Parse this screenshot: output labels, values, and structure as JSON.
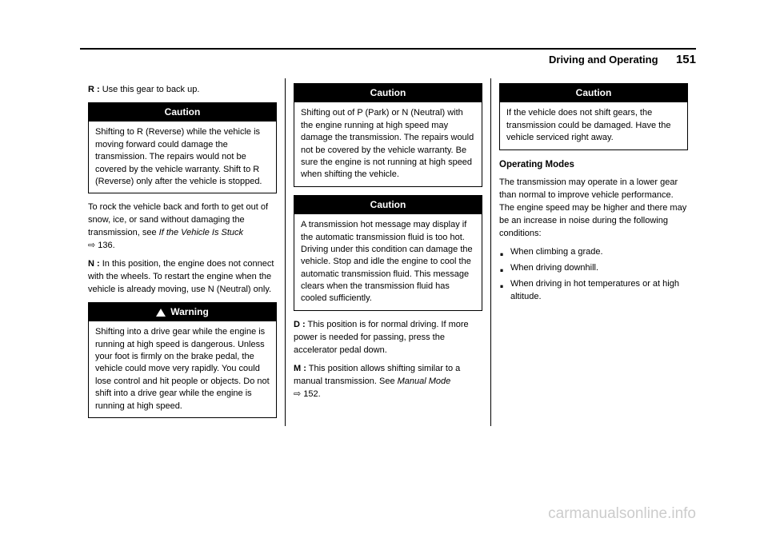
{
  "header": {
    "section": "Driving and Operating",
    "page": "151"
  },
  "col1": {
    "r_intro_label": "R :",
    "r_intro_text": " Use this gear to back up.",
    "caution1_title": "Caution",
    "caution1_body": "Shifting to R (Reverse) while the vehicle is moving forward could damage the transmission. The repairs would not be covered by the vehicle warranty. Shift to R (Reverse) only after the vehicle is stopped.",
    "rock_text": "To rock the vehicle back and forth to get out of snow, ice, or sand without damaging the transmission, see ",
    "rock_ref": "If the Vehicle Is Stuck",
    "rock_page": "⇨ 136.",
    "n_intro_label": "N :",
    "n_intro_text": " In this position, the engine does not connect with the wheels. To restart the engine when the vehicle is already moving, use N (Neutral) only.",
    "warning_title": "Warning",
    "warning_body": "Shifting into a drive gear while the engine is running at high speed is dangerous. Unless your foot is firmly on the brake pedal, the vehicle could move very rapidly. You could lose control and hit people or objects. Do not shift into a drive gear while the engine is running at high speed."
  },
  "col2": {
    "caution2_title": "Caution",
    "caution2_body": "Shifting out of P (Park) or N (Neutral) with the engine running at high speed may damage the transmission. The repairs would not be covered by the vehicle warranty. Be sure the engine is not running at high speed when shifting the vehicle.",
    "caution3_title": "Caution",
    "caution3_body": "A transmission hot message may display if the automatic transmission fluid is too hot. Driving under this condition can damage the vehicle. Stop and idle the engine to cool the automatic transmission fluid. This message clears when the transmission fluid has cooled sufficiently.",
    "d_intro_label": "D :",
    "d_intro_text": " This position is for normal driving. If more power is needed for passing, press the accelerator pedal down.",
    "m_intro_label": "M :",
    "m_intro_text": " This position allows shifting similar to a manual transmission. See ",
    "m_ref": "Manual Mode",
    "m_page": "⇨ 152."
  },
  "col3": {
    "caution4_title": "Caution",
    "caution4_body": "If the vehicle does not shift gears, the transmission could be damaged. Have the vehicle serviced right away.",
    "modes_heading": "Operating Modes",
    "modes_intro": "The transmission may operate in a lower gear than normal to improve vehicle performance. The engine speed may be higher and there may be an increase in noise during the following conditions:",
    "bullets": {
      "b1": "When climbing a grade.",
      "b2": "When driving downhill.",
      "b3": "When driving in hot temperatures or at high altitude."
    }
  },
  "watermark": "carmanualsonline.info"
}
